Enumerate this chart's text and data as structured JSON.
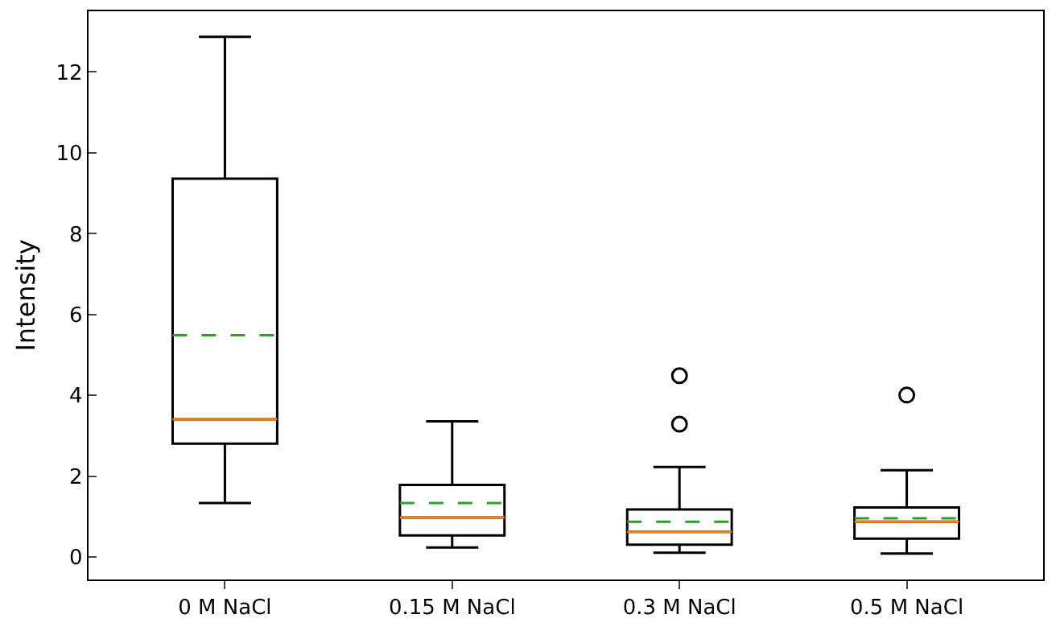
{
  "chart_data": {
    "type": "box",
    "ylabel": "Intensity",
    "categories": [
      "0 M NaCl",
      "0.15 M NaCl",
      "0.3 M NaCl",
      "0.5 M NaCl"
    ],
    "boxes": [
      {
        "low": 1.34,
        "q1": 2.81,
        "median": 3.41,
        "q3": 9.36,
        "high": 12.87,
        "mean": 5.49
      },
      {
        "low": 0.24,
        "q1": 0.54,
        "median": 0.98,
        "q3": 1.79,
        "high": 3.36,
        "mean": 1.34
      },
      {
        "low": 0.11,
        "q1": 0.31,
        "median": 0.63,
        "q3": 1.18,
        "high": 2.23,
        "mean": 0.88,
        "outliers": [
          3.29,
          4.49
        ]
      },
      {
        "low": 0.09,
        "q1": 0.46,
        "median": 0.88,
        "q3": 1.23,
        "high": 2.15,
        "mean": 0.96,
        "outliers": [
          4.01
        ]
      }
    ],
    "ylim": [
      -0.55,
      13.5
    ],
    "yticks": [
      0,
      2,
      4,
      6,
      8,
      10,
      12
    ]
  }
}
